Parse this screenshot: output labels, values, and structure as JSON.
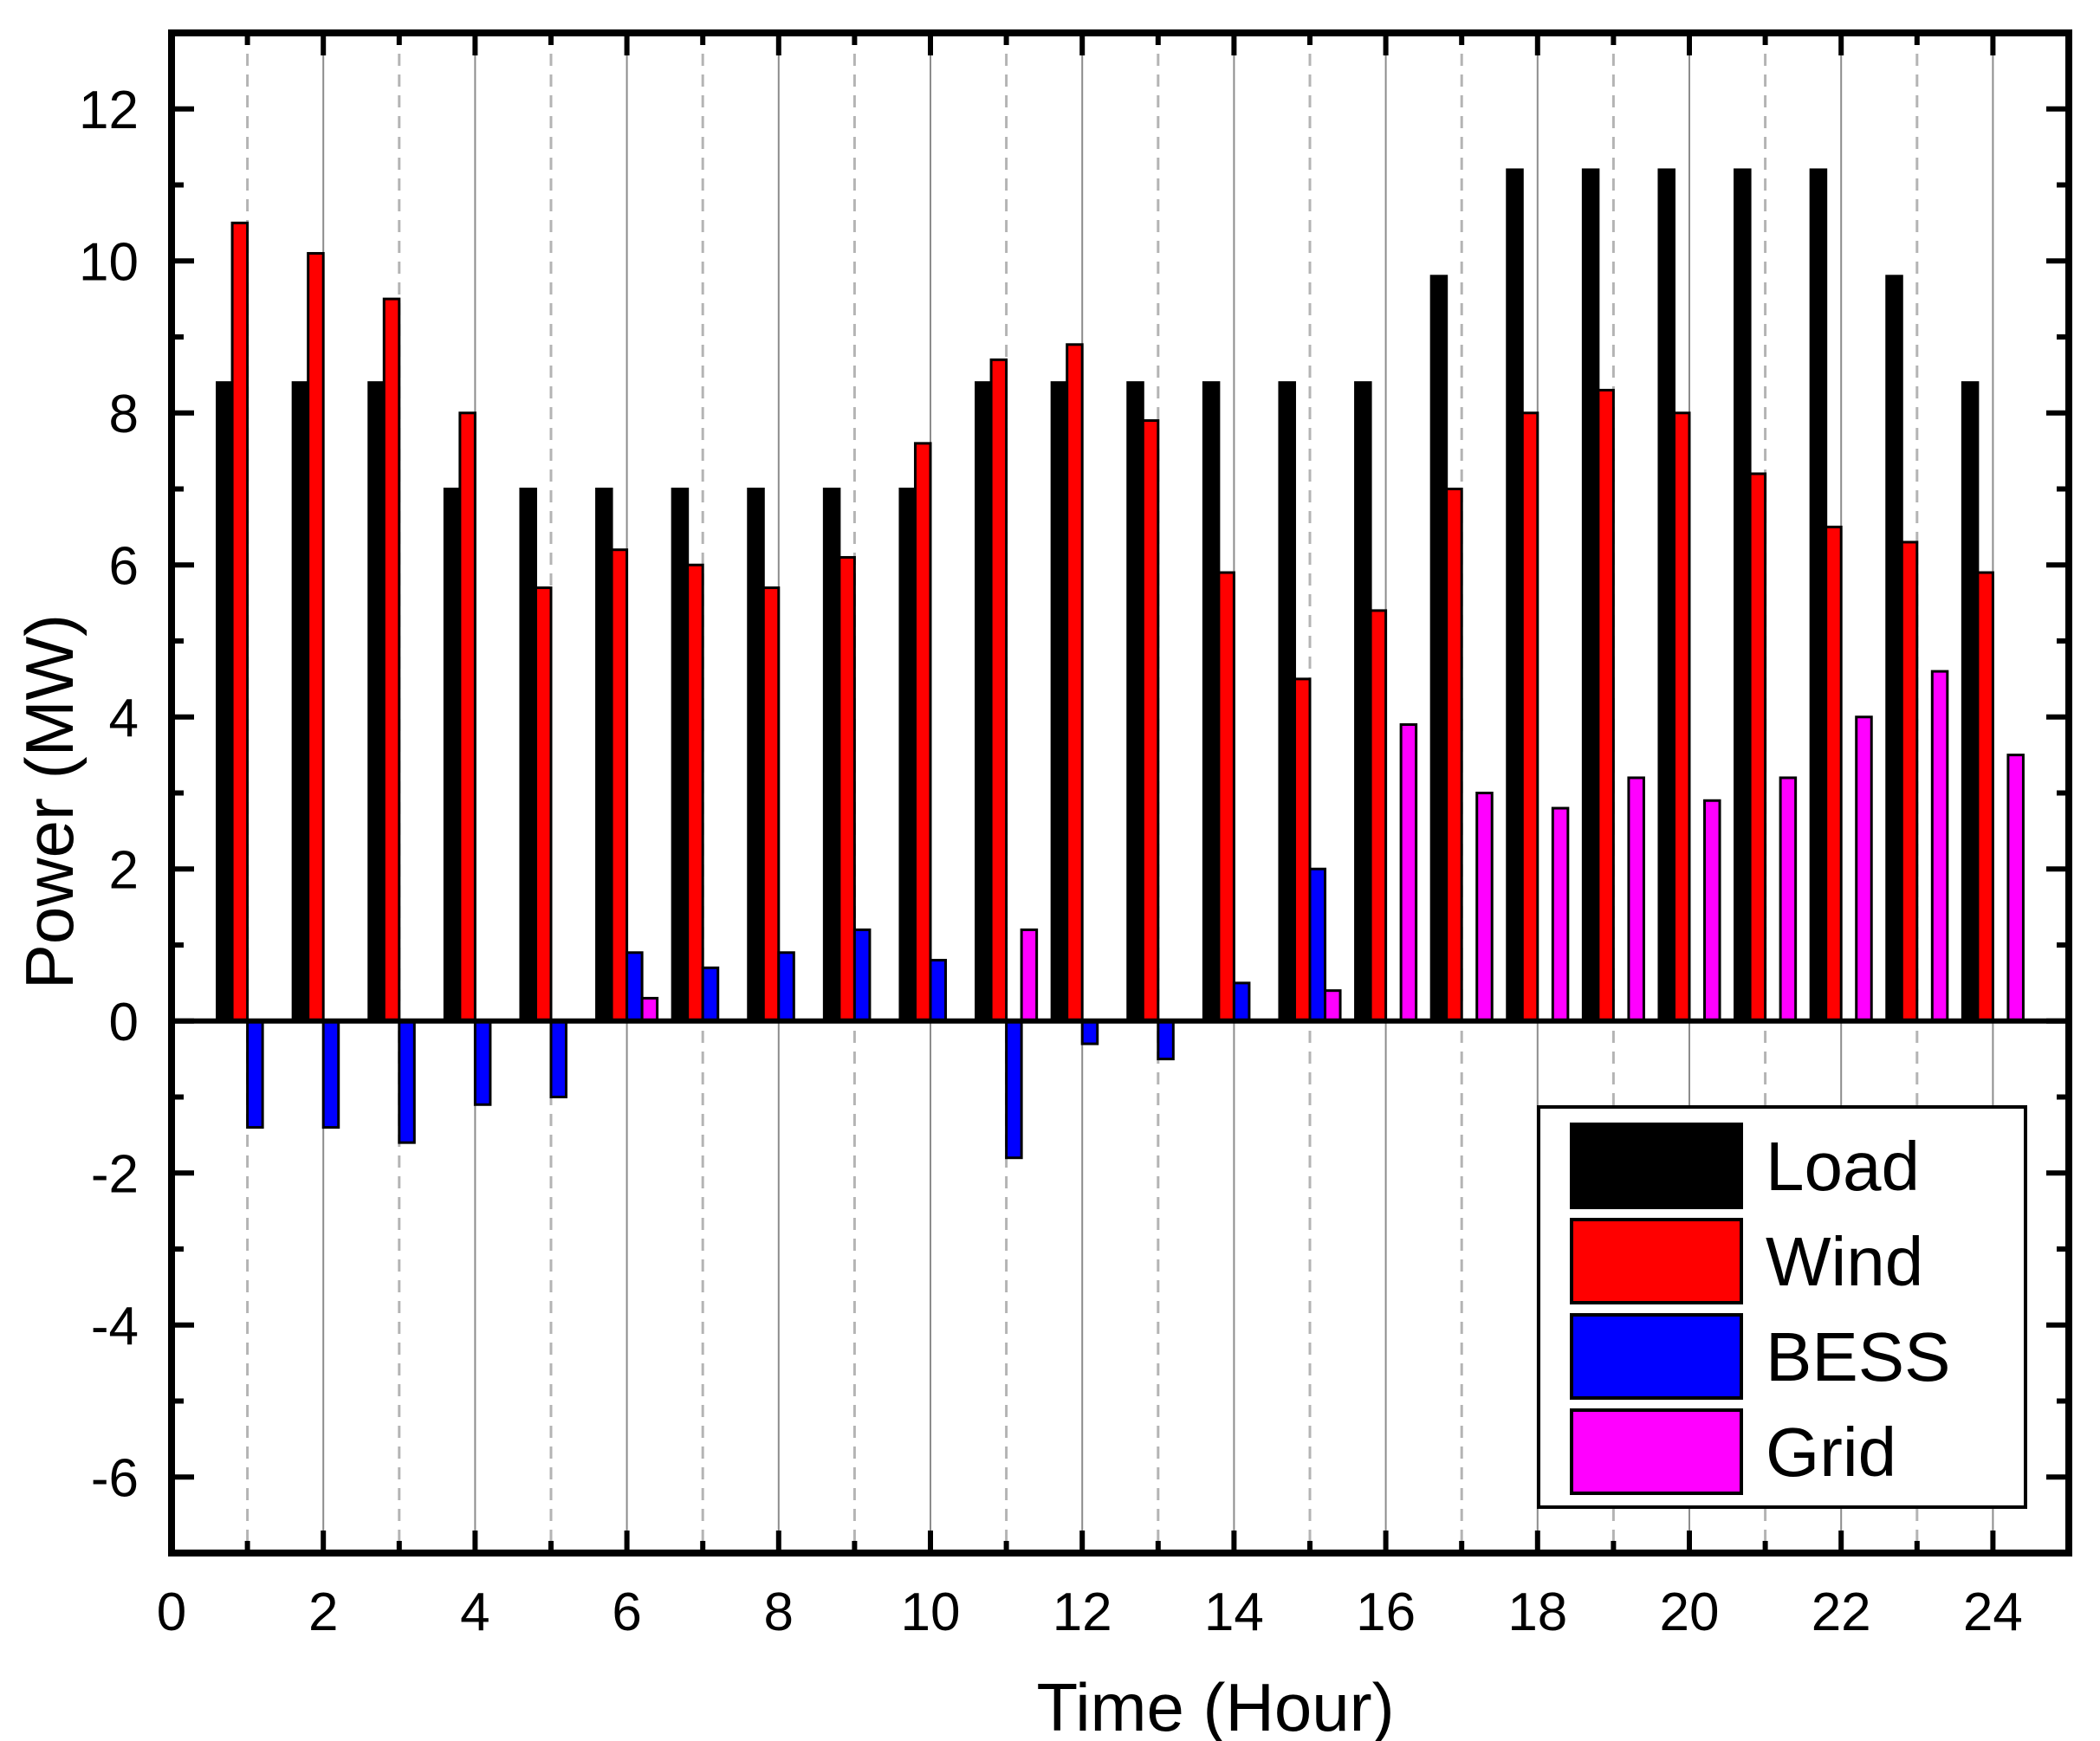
{
  "chart_data": {
    "type": "bar",
    "title": "",
    "xlabel": "Time (Hour)",
    "ylabel": "Power (MW)",
    "xlim": [
      0,
      25
    ],
    "ylim": [
      -7,
      13
    ],
    "x_ticks": [
      0,
      2,
      4,
      6,
      8,
      10,
      12,
      14,
      16,
      18,
      20,
      22,
      24
    ],
    "y_ticks": [
      -6,
      -4,
      -2,
      0,
      2,
      4,
      6,
      8,
      10,
      12
    ],
    "x_tick_labels": [
      "0",
      "2",
      "4",
      "6",
      "8",
      "10",
      "12",
      "14",
      "16",
      "18",
      "20",
      "22",
      "24"
    ],
    "y_tick_labels": [
      "-6",
      "-4",
      "-2",
      "0",
      "2",
      "4",
      "6",
      "8",
      "10",
      "12"
    ],
    "grid": {
      "vertical_solid_at_even": true,
      "vertical_dashed_at_odd": true
    },
    "legend_position": "bottom-right",
    "categories": [
      1,
      2,
      3,
      4,
      5,
      6,
      7,
      8,
      9,
      10,
      11,
      12,
      13,
      14,
      15,
      16,
      17,
      18,
      19,
      20,
      21,
      22,
      23,
      24
    ],
    "series": [
      {
        "name": "Load",
        "color": "#000000",
        "values": [
          8.4,
          8.4,
          8.4,
          7.0,
          7.0,
          7.0,
          7.0,
          7.0,
          7.0,
          7.0,
          8.4,
          8.4,
          8.4,
          8.4,
          8.4,
          8.4,
          9.8,
          11.2,
          11.2,
          11.2,
          11.2,
          11.2,
          9.8,
          8.4
        ]
      },
      {
        "name": "Wind",
        "color": "#ff0000",
        "values": [
          10.5,
          10.1,
          9.5,
          8.0,
          5.7,
          6.2,
          6.0,
          5.7,
          6.1,
          7.6,
          8.7,
          8.9,
          7.9,
          5.9,
          4.5,
          5.4,
          7.0,
          8.0,
          8.3,
          8.0,
          7.2,
          6.5,
          6.3,
          5.9
        ]
      },
      {
        "name": "BESS",
        "color": "#0000ff",
        "values": [
          -1.4,
          -1.4,
          -1.6,
          -1.1,
          -1.0,
          0.9,
          0.7,
          0.9,
          1.2,
          0.8,
          -1.8,
          -0.3,
          -0.5,
          0.5,
          2.0,
          0.0,
          0.0,
          0.0,
          0.0,
          0.0,
          0.0,
          0.0,
          0.0,
          0.0
        ]
      },
      {
        "name": "Grid",
        "color": "#ff00ff",
        "values": [
          0.0,
          0.0,
          0.0,
          0.0,
          0.0,
          0.3,
          0.0,
          0.0,
          0.0,
          0.0,
          1.2,
          0.0,
          0.0,
          0.0,
          0.4,
          3.9,
          3.0,
          2.8,
          3.2,
          2.9,
          3.2,
          4.0,
          4.6,
          3.5
        ]
      }
    ]
  }
}
